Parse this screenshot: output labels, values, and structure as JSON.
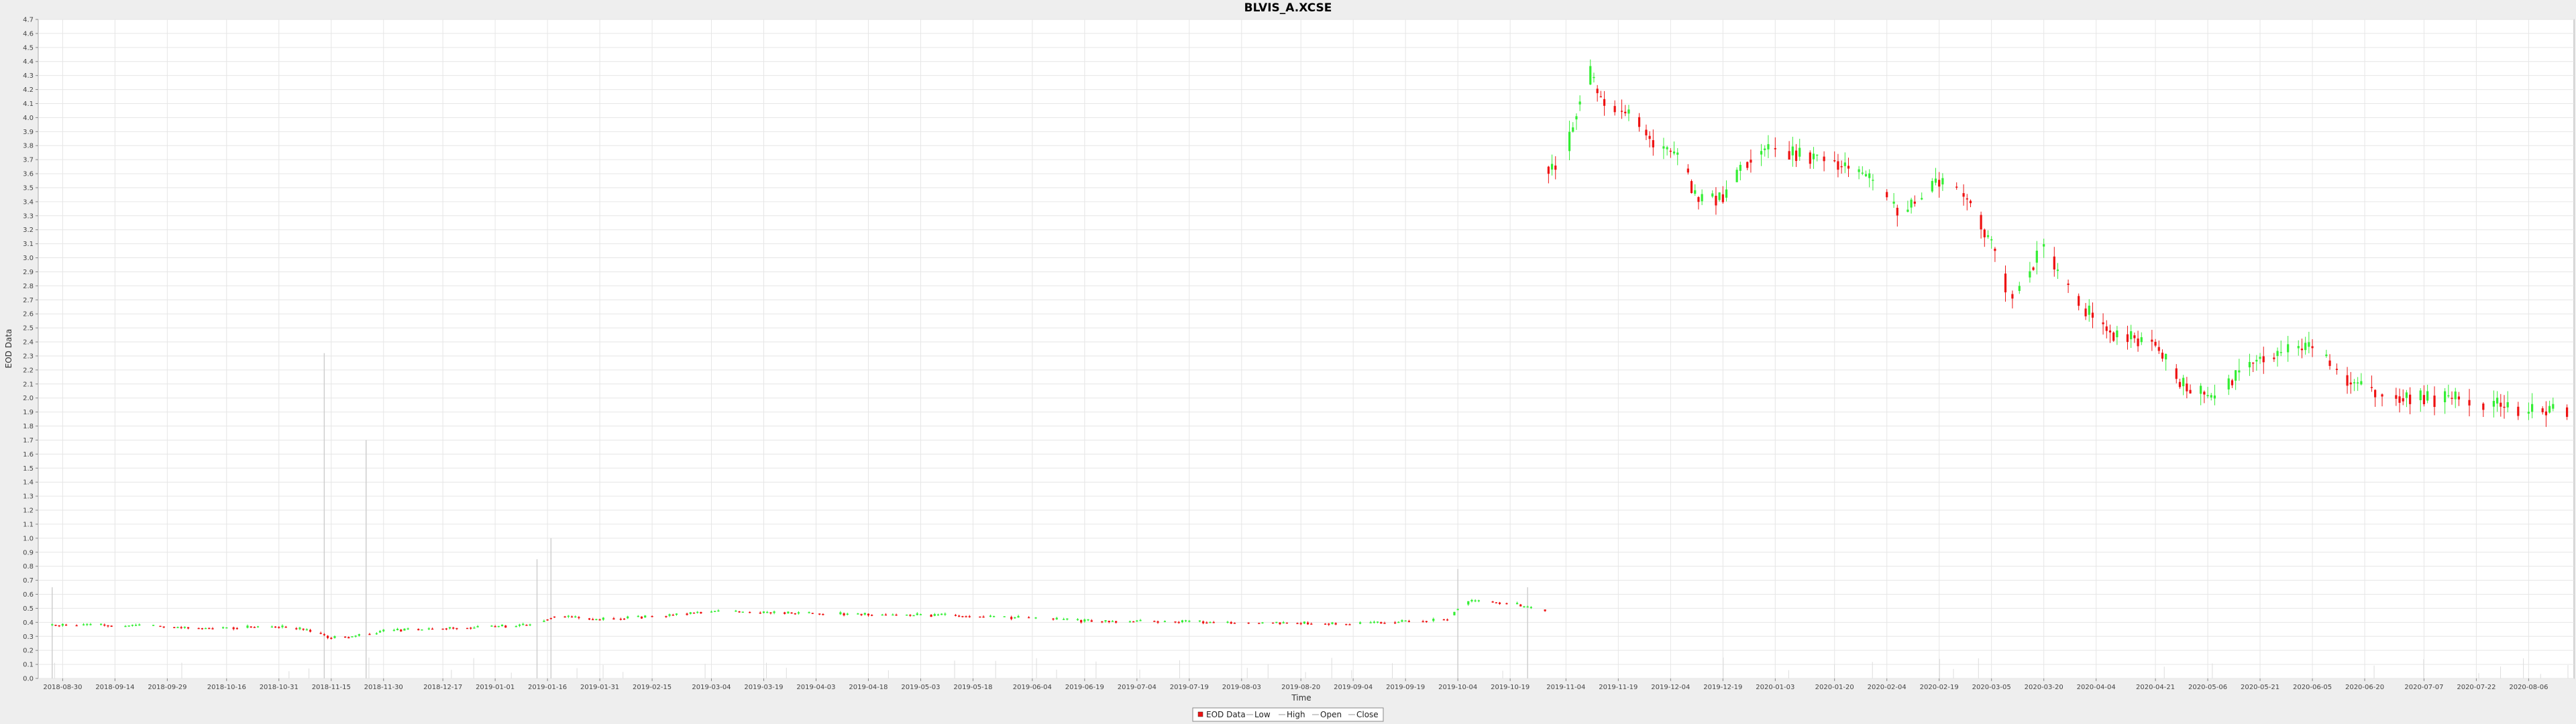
{
  "chart_data": {
    "type": "candlestick",
    "title": "BLVIS_A.XCSE",
    "xlabel": "Time",
    "ylabel": "EOD Data",
    "ylim": [
      0.0,
      4.7
    ],
    "ytick_step": 0.1,
    "x_tick_labels": [
      "2018-08-30",
      "2018-09-14",
      "2018-09-29",
      "2018-10-16",
      "2018-10-31",
      "2018-11-15",
      "2018-11-30",
      "2018-12-17",
      "2019-01-01",
      "2019-01-16",
      "2019-01-31",
      "2019-02-15",
      "2019-03-04",
      "2019-03-19",
      "2019-04-03",
      "2019-04-18",
      "2019-05-03",
      "2019-05-18",
      "2019-06-04",
      "2019-06-19",
      "2019-07-04",
      "2019-07-19",
      "2019-08-03",
      "2019-08-20",
      "2019-09-04",
      "2019-09-19",
      "2019-10-04",
      "2019-10-19",
      "2019-11-04",
      "2019-11-19",
      "2019-12-04",
      "2019-12-19",
      "2020-01-03",
      "2020-01-20",
      "2020-02-04",
      "2020-02-19",
      "2020-03-05",
      "2020-03-20",
      "2020-04-04",
      "2020-04-21",
      "2020-05-06",
      "2020-05-21",
      "2020-06-05",
      "2020-06-20",
      "2020-07-07",
      "2020-07-22",
      "2020-08-06"
    ],
    "x_start": "2018-08-23",
    "x_end": "2020-08-19",
    "grid": true,
    "legend_position": "bottom",
    "legend": [
      "EOD Data",
      "Low",
      "High",
      "Open",
      "Close"
    ],
    "colors": {
      "up": "#33ee33",
      "down": "#ee1111",
      "volume": "#cccccc",
      "grid": "#e6e6e6",
      "plot_bg": "#ffffff"
    },
    "control_points": [
      [
        "2018-08-23",
        0.38
      ],
      [
        "2018-09-14",
        0.38
      ],
      [
        "2018-10-10",
        0.36
      ],
      [
        "2018-10-31",
        0.37
      ],
      [
        "2018-11-10",
        0.34
      ],
      [
        "2018-11-15",
        0.29
      ],
      [
        "2018-11-22",
        0.3
      ],
      [
        "2018-12-01",
        0.34
      ],
      [
        "2018-12-20",
        0.36
      ],
      [
        "2019-01-01",
        0.37
      ],
      [
        "2019-01-12",
        0.38
      ],
      [
        "2019-01-18",
        0.45
      ],
      [
        "2019-01-31",
        0.42
      ],
      [
        "2019-02-20",
        0.45
      ],
      [
        "2019-03-04",
        0.48
      ],
      [
        "2019-03-19",
        0.47
      ],
      [
        "2019-04-10",
        0.46
      ],
      [
        "2019-05-10",
        0.45
      ],
      [
        "2019-06-04",
        0.43
      ],
      [
        "2019-06-19",
        0.41
      ],
      [
        "2019-08-03",
        0.4
      ],
      [
        "2019-09-04",
        0.39
      ],
      [
        "2019-10-01",
        0.42
      ],
      [
        "2019-10-06",
        0.55
      ],
      [
        "2019-10-19",
        0.54
      ],
      [
        "2019-10-28",
        0.48
      ],
      [
        "2019-11-01",
        3.65
      ],
      [
        "2019-11-06",
        3.9
      ],
      [
        "2019-11-10",
        4.4
      ],
      [
        "2019-11-13",
        4.15
      ],
      [
        "2019-11-24",
        4.0
      ],
      [
        "2019-11-30",
        3.8
      ],
      [
        "2019-12-06",
        3.72
      ],
      [
        "2019-12-12",
        3.4
      ],
      [
        "2019-12-20",
        3.45
      ],
      [
        "2019-12-28",
        3.78
      ],
      [
        "2020-01-08",
        3.75
      ],
      [
        "2020-01-20",
        3.7
      ],
      [
        "2020-01-30",
        3.55
      ],
      [
        "2020-02-08",
        3.3
      ],
      [
        "2020-02-19",
        3.55
      ],
      [
        "2020-02-28",
        3.4
      ],
      [
        "2020-03-05",
        3.1
      ],
      [
        "2020-03-10",
        2.7
      ],
      [
        "2020-03-16",
        2.9
      ],
      [
        "2020-03-20",
        3.1
      ],
      [
        "2020-03-27",
        2.75
      ],
      [
        "2020-04-04",
        2.55
      ],
      [
        "2020-04-10",
        2.45
      ],
      [
        "2020-04-21",
        2.4
      ],
      [
        "2020-04-28",
        2.1
      ],
      [
        "2020-05-08",
        1.98
      ],
      [
        "2020-05-16",
        2.2
      ],
      [
        "2020-05-22",
        2.3
      ],
      [
        "2020-06-05",
        2.35
      ],
      [
        "2020-06-14",
        2.15
      ],
      [
        "2020-06-22",
        2.05
      ],
      [
        "2020-07-07",
        2.0
      ],
      [
        "2020-07-22",
        1.98
      ],
      [
        "2020-08-06",
        1.9
      ],
      [
        "2020-08-19",
        1.92
      ]
    ],
    "gap": [
      "2019-10-31",
      "2019-10-31"
    ],
    "volume_spikes": [
      [
        "2018-08-27",
        0.65
      ],
      [
        "2018-11-13",
        2.32
      ],
      [
        "2018-11-25",
        1.7
      ],
      [
        "2019-01-17",
        1.0
      ],
      [
        "2019-01-13",
        0.85
      ],
      [
        "2019-10-04",
        0.78
      ],
      [
        "2019-10-24",
        0.65
      ]
    ]
  }
}
